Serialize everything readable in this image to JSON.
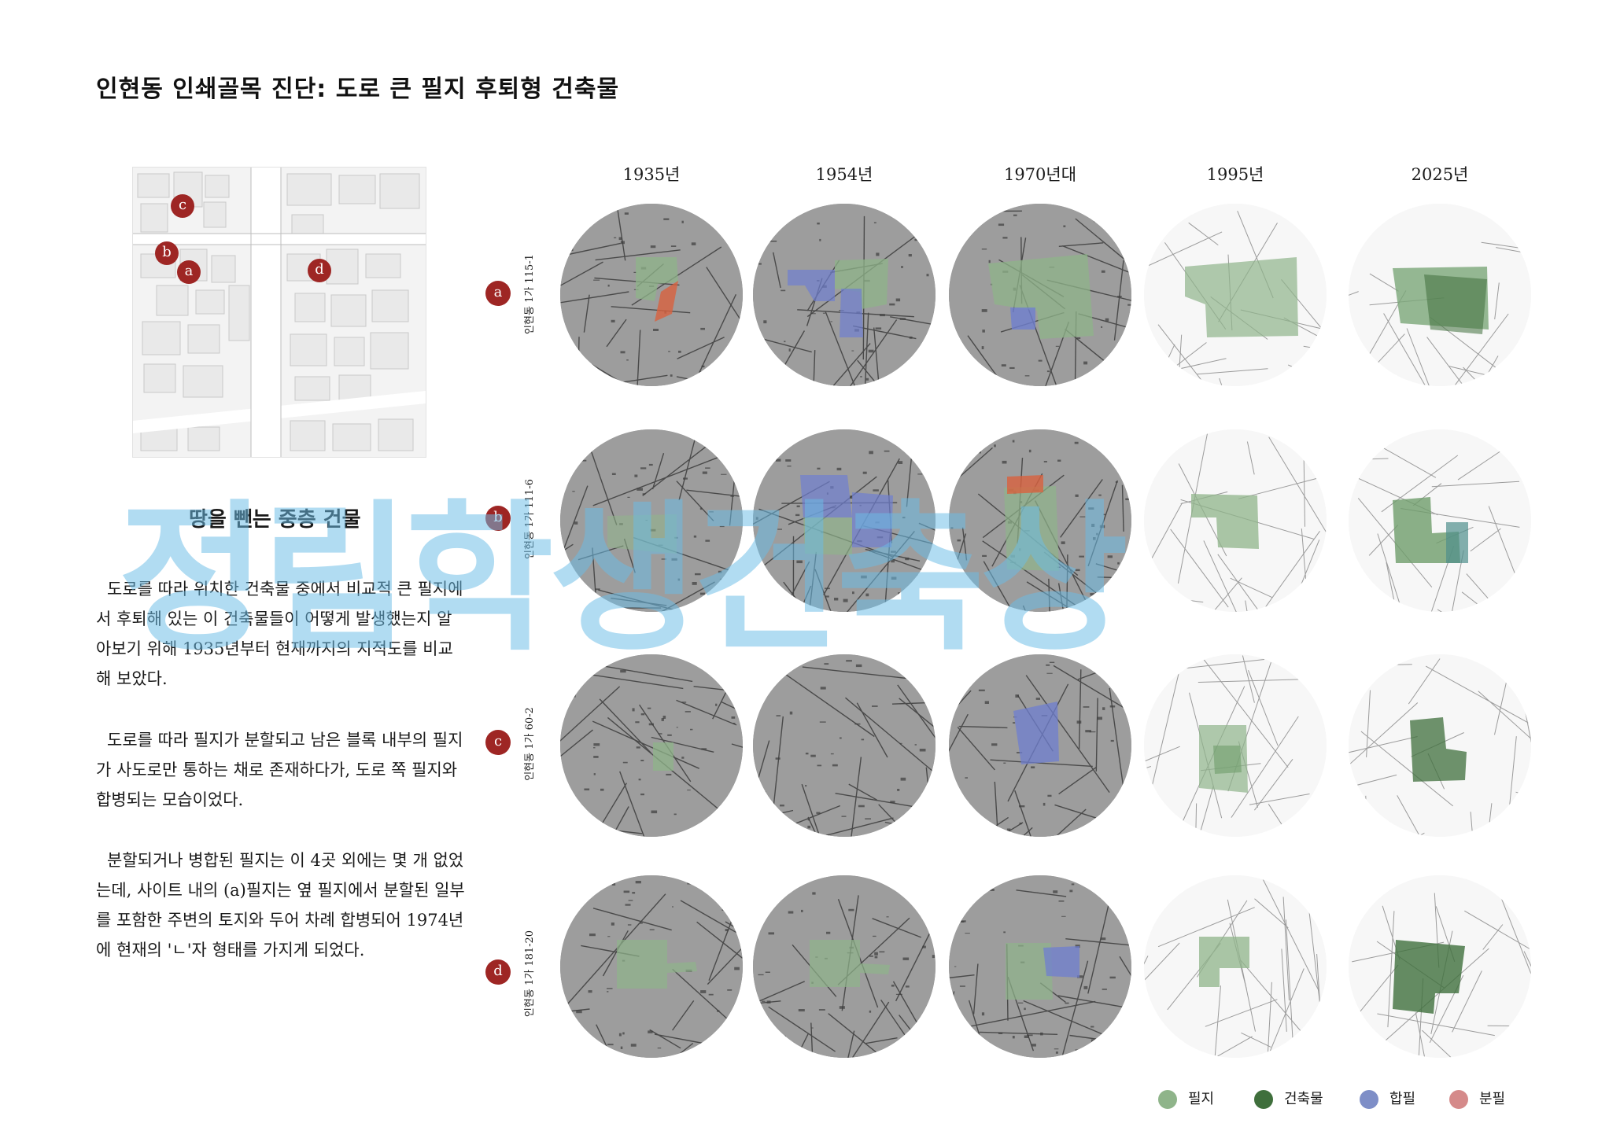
{
  "title": "인현동 인쇄골목 진단: 도로 큰 필지 후퇴형 건축물",
  "key_map": {
    "markers": [
      "c",
      "b",
      "a",
      "d"
    ]
  },
  "section_heading": "땅을 뺀는 중층 건물",
  "paragraphs": [
    "도로를 따라 위치한 건축물 중에서 비교적 큰 필지에서 후퇴해 있는 이 건축물들이 어떻게 발생했는지 알아보기 위해 1935년부터 현재까지의 지적도를 비교해 보았다.",
    "도로를 따라 필지가 분할되고 남은 블록 내부의 필지가 사도로만 통하는 채로 존재하다가, 도로 쪽 필지와 합병되는 모습이었다.",
    "분할되거나 병합된 필지는 이 4곳 외에는 몇 개 없었는데, 사이트 내의 (a)필지는 옆 필지에서 분할된 일부를 포함한 주변의 토지와 두어 차례 합병되어 1974년에 현재의 'ㄴ'자 형태를 가지게 되었다."
  ],
  "years": [
    "1935년",
    "1954년",
    "1970년대",
    "1995년",
    "2025년"
  ],
  "rows": [
    {
      "marker": "a",
      "address": "인현동 1가 115-1"
    },
    {
      "marker": "b",
      "address": "인현동 1가 111-6"
    },
    {
      "marker": "c",
      "address": "인현동 1가 60-2"
    },
    {
      "marker": "d",
      "address": "인현동 1가 181-20"
    }
  ],
  "legend": [
    {
      "label": "필지",
      "color": "#8fb48a"
    },
    {
      "label": "건축물",
      "color": "#3f6f3c"
    },
    {
      "label": "합필",
      "color": "#7e8ec7"
    },
    {
      "label": "분필",
      "color": "#d58a8a"
    }
  ],
  "watermark": "정림학생건축상",
  "colors": {
    "marker": "#9e2624",
    "parcel": "#8fb48a",
    "merge": "#6f7fd0",
    "split": "#d9613f"
  }
}
